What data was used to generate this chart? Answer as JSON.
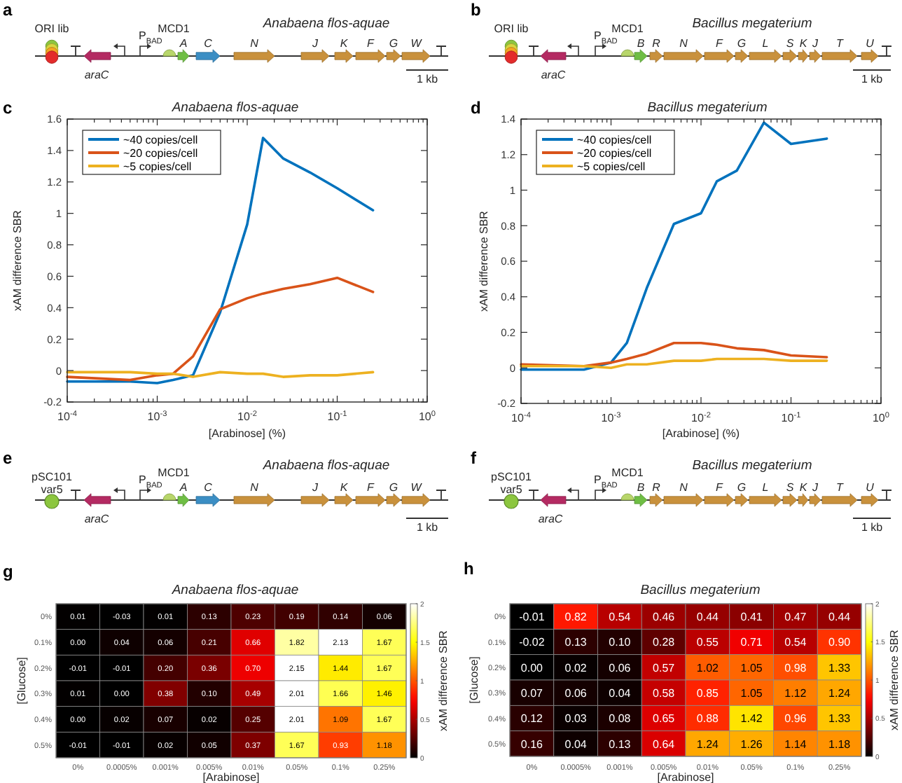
{
  "chart_data": [
    {
      "type": "other",
      "title": "Anabaena flos-aquae",
      "annotations": [
        "a",
        "ORI lib",
        "araC",
        "P$_{BAD}$",
        "MCD1",
        "A",
        "C",
        "N",
        "J",
        "K",
        "F",
        "G",
        "W",
        "1 kb"
      ]
    },
    {
      "type": "other",
      "title": "Bacillus megaterium",
      "annotations": [
        "b",
        "ORI lib",
        "araC",
        "P$_{BAD}$",
        "MCD1",
        "B",
        "R",
        "N",
        "F",
        "G",
        "L",
        "S",
        "K",
        "J",
        "T",
        "U",
        "1 kb"
      ]
    },
    {
      "type": "line",
      "title": "Anabaena flos-aquae",
      "xlabel": "[Arabinose] (%)",
      "ylabel": "xAM difference SBR",
      "annotations": [
        "c"
      ],
      "log": "x",
      "legend": "top left",
      "x": [
        0.0001,
        0.0005,
        0.001,
        0.0015,
        0.0025,
        0.005,
        0.01,
        0.015,
        0.025,
        0.05,
        0.1,
        0.25
      ],
      "series": [
        {
          "name": "~40 copies/cell",
          "color": "#0072bd",
          "values": [
            -0.07,
            -0.07,
            -0.08,
            -0.06,
            -0.03,
            0.37,
            0.93,
            1.48,
            1.35,
            1.26,
            1.16,
            1.02
          ]
        },
        {
          "name": "~20 copies/cell",
          "color": "#d95319",
          "values": [
            -0.04,
            -0.06,
            -0.03,
            -0.02,
            0.09,
            0.39,
            0.46,
            0.49,
            0.52,
            0.55,
            0.59,
            0.5
          ]
        },
        {
          "name": "~5 copies/cell",
          "color": "#edb120",
          "values": [
            -0.01,
            -0.01,
            -0.02,
            -0.02,
            -0.04,
            -0.01,
            -0.02,
            -0.02,
            -0.04,
            -0.03,
            -0.03,
            -0.01
          ]
        }
      ],
      "xlim": [
        0.0001,
        1
      ],
      "ylim": [
        -0.2,
        1.6
      ],
      "xticks": [
        {
          "value": 0.0001,
          "label": "10$^{-4}$"
        },
        {
          "value": 0.0002,
          "label": null
        },
        {
          "value": 0.0003,
          "label": null
        },
        {
          "value": 0.0004,
          "label": null
        },
        {
          "value": 0.0005,
          "label": null
        },
        {
          "value": 0.0006,
          "label": null
        },
        {
          "value": 0.0007,
          "label": null
        },
        {
          "value": 0.0008,
          "label": null
        },
        {
          "value": 0.0009,
          "label": null
        },
        {
          "value": 0.001,
          "label": "10$^{-3}$"
        },
        {
          "value": 0.002,
          "label": null
        },
        {
          "value": 0.003,
          "label": null
        },
        {
          "value": 0.004,
          "label": null
        },
        {
          "value": 0.005,
          "label": null
        },
        {
          "value": 0.006,
          "label": null
        },
        {
          "value": 0.007,
          "label": null
        },
        {
          "value": 0.008,
          "label": null
        },
        {
          "value": 0.009,
          "label": null
        },
        {
          "value": 0.01,
          "label": "10$^{-2}$"
        },
        {
          "value": 0.02,
          "label": null
        },
        {
          "value": 0.03,
          "label": null
        },
        {
          "value": 0.04,
          "label": null
        },
        {
          "value": 0.05,
          "label": null
        },
        {
          "value": 0.06,
          "label": null
        },
        {
          "value": 0.07,
          "label": null
        },
        {
          "value": 0.08,
          "label": null
        },
        {
          "value": 0.09,
          "label": null
        },
        {
          "value": 0.1,
          "label": "10$^{-1}$"
        },
        {
          "value": 0.2,
          "label": null
        },
        {
          "value": 0.3,
          "label": null
        },
        {
          "value": 0.4,
          "label": null
        },
        {
          "value": 0.5,
          "label": null
        },
        {
          "value": 0.6,
          "label": null
        },
        {
          "value": 0.7,
          "label": null
        },
        {
          "value": 0.8,
          "label": null
        },
        {
          "value": 0.9,
          "label": null
        },
        {
          "value": 1,
          "label": "10$^{0}$"
        }
      ],
      "yticks": [
        -0.2,
        0,
        0.2,
        0.4,
        0.6,
        0.8,
        1,
        1.2,
        1.4,
        1.6
      ]
    },
    {
      "type": "line",
      "title": "Bacillus megaterium",
      "xlabel": "[Arabinose] (%)",
      "ylabel": "xAM difference SBR",
      "annotations": [
        "d"
      ],
      "log": "x",
      "legend": "top left",
      "x": [
        0.0001,
        0.0005,
        0.001,
        0.0015,
        0.0025,
        0.005,
        0.01,
        0.015,
        0.025,
        0.05,
        0.1,
        0.25
      ],
      "series": [
        {
          "name": "~40 copies/cell",
          "color": "#0072bd",
          "values": [
            -0.01,
            -0.01,
            0.03,
            0.14,
            0.45,
            0.81,
            0.87,
            1.05,
            1.11,
            1.38,
            1.26,
            1.29
          ]
        },
        {
          "name": "~20 copies/cell",
          "color": "#d95319",
          "values": [
            0.02,
            0.01,
            0.03,
            0.05,
            0.08,
            0.14,
            0.14,
            0.13,
            0.11,
            0.1,
            0.07,
            0.06
          ]
        },
        {
          "name": "~5 copies/cell",
          "color": "#edb120",
          "values": [
            0.01,
            0.01,
            0,
            0.02,
            0.02,
            0.04,
            0.04,
            0.05,
            0.05,
            0.05,
            0.04,
            0.04
          ]
        }
      ],
      "xlim": [
        0.0001,
        1
      ],
      "ylim": [
        -0.2,
        1.4
      ],
      "xticks": [
        {
          "value": 0.0001,
          "label": "10$^{-4}$"
        },
        {
          "value": 0.0002,
          "label": null
        },
        {
          "value": 0.0003,
          "label": null
        },
        {
          "value": 0.0004,
          "label": null
        },
        {
          "value": 0.0005,
          "label": null
        },
        {
          "value": 0.0006,
          "label": null
        },
        {
          "value": 0.0007,
          "label": null
        },
        {
          "value": 0.0008,
          "label": null
        },
        {
          "value": 0.0009,
          "label": null
        },
        {
          "value": 0.001,
          "label": "10$^{-3}$"
        },
        {
          "value": 0.002,
          "label": null
        },
        {
          "value": 0.003,
          "label": null
        },
        {
          "value": 0.004,
          "label": null
        },
        {
          "value": 0.005,
          "label": null
        },
        {
          "value": 0.006,
          "label": null
        },
        {
          "value": 0.007,
          "label": null
        },
        {
          "value": 0.008,
          "label": null
        },
        {
          "value": 0.009,
          "label": null
        },
        {
          "value": 0.01,
          "label": "10$^{-2}$"
        },
        {
          "value": 0.02,
          "label": null
        },
        {
          "value": 0.03,
          "label": null
        },
        {
          "value": 0.04,
          "label": null
        },
        {
          "value": 0.05,
          "label": null
        },
        {
          "value": 0.06,
          "label": null
        },
        {
          "value": 0.07,
          "label": null
        },
        {
          "value": 0.08,
          "label": null
        },
        {
          "value": 0.09,
          "label": null
        },
        {
          "value": 0.1,
          "label": "10$^{-1}$"
        },
        {
          "value": 0.2,
          "label": null
        },
        {
          "value": 0.3,
          "label": null
        },
        {
          "value": 0.4,
          "label": null
        },
        {
          "value": 0.5,
          "label": null
        },
        {
          "value": 0.6,
          "label": null
        },
        {
          "value": 0.7,
          "label": null
        },
        {
          "value": 0.8,
          "label": null
        },
        {
          "value": 0.9,
          "label": null
        },
        {
          "value": 1,
          "label": "10$^{0}$"
        }
      ],
      "yticks": [
        -0.2,
        0,
        0.2,
        0.4,
        0.6,
        0.8,
        1,
        1.2,
        1.4
      ]
    },
    {
      "type": "other",
      "title": "Anabaena flos-aquae",
      "annotations": [
        "e",
        "pSC101",
        "var5",
        "araC",
        "P$_{BAD}$",
        "MCD1",
        "A",
        "C",
        "N",
        "J",
        "K",
        "F",
        "G",
        "W",
        "1 kb"
      ]
    },
    {
      "type": "other",
      "title": "Bacillus megaterium",
      "annotations": [
        "f",
        "pSC101",
        "var5",
        "araC",
        "P$_{BAD}$",
        "MCD1",
        "B",
        "R",
        "N",
        "F",
        "G",
        "L",
        "S",
        "K",
        "J",
        "T",
        "U",
        "1 kb"
      ]
    },
    {
      "type": "heatmap",
      "title": "Anabaena flos-aquae",
      "xlabel": "[Arabinose]",
      "ylabel": "[Glucose]",
      "clabel": "xAM difference SBR",
      "annotations": [
        "g"
      ],
      "categories": [
        "0%",
        "0.0005%",
        "0.001%",
        "0.005%",
        "0.01%",
        "0.05%",
        "0.1%",
        "0.25%"
      ],
      "y_categories": [
        "0%",
        "0.1%",
        "0.2%",
        "0.3%",
        "0.4%",
        "0.5%"
      ],
      "cells": [
        [
          0.01,
          -0.03,
          0.01,
          0.13,
          0.23,
          0.19,
          0.14,
          0.06
        ],
        [
          0,
          0.04,
          0.06,
          0.21,
          0.66,
          1.82,
          2.13,
          1.67
        ],
        [
          -0.01,
          -0.01,
          0.2,
          0.36,
          0.7,
          2.15,
          1.44,
          1.67
        ],
        [
          0.01,
          0,
          0.38,
          0.1,
          0.49,
          2.01,
          1.66,
          1.46
        ],
        [
          0,
          0.02,
          0.07,
          0.02,
          0.25,
          2.01,
          1.09,
          1.67
        ],
        [
          -0.01,
          -0.01,
          0.02,
          0.05,
          0.37,
          1.67,
          0.93,
          1.18
        ]
      ],
      "cell_labels": [
        [
          "0.01",
          "-0.03",
          "0.01",
          "0.13",
          "0.23",
          "0.19",
          "0.14",
          "0.06"
        ],
        [
          "0.00",
          "0.04",
          "0.06",
          "0.21",
          "0.66",
          "1.82",
          "2.13",
          "1.67"
        ],
        [
          "-0.01",
          "-0.01",
          "0.20",
          "0.36",
          "0.70",
          "2.15",
          "1.44",
          "1.67"
        ],
        [
          "0.01",
          "0.00",
          "0.38",
          "0.10",
          "0.49",
          "2.01",
          "1.66",
          "1.46"
        ],
        [
          "0.00",
          "0.02",
          "0.07",
          "0.02",
          "0.25",
          "2.01",
          "1.09",
          "1.67"
        ],
        [
          "-0.01",
          "-0.01",
          "0.02",
          "0.05",
          "0.37",
          "1.67",
          "0.93",
          "1.18"
        ]
      ],
      "clim": [
        0,
        2
      ],
      "cticks": [
        0,
        0.5,
        1,
        1.5,
        2
      ]
    },
    {
      "type": "heatmap",
      "title": "Bacillus megaterium",
      "xlabel": "[Arabinose]",
      "ylabel": "[Glucose]",
      "clabel": "xAM difference SBR",
      "annotations": [
        "h"
      ],
      "categories": [
        "0%",
        "0.0005%",
        "0.001%",
        "0.005%",
        "0.01%",
        "0.05%",
        "0.1%",
        "0.25%"
      ],
      "y_categories": [
        "0%",
        "0.1%",
        "0.2%",
        "0.3%",
        "0.4%",
        "0.5%"
      ],
      "cells": [
        [
          -0.01,
          0.82,
          0.54,
          0.46,
          0.44,
          0.41,
          0.47,
          0.44
        ],
        [
          -0.02,
          0.13,
          0.1,
          0.28,
          0.55,
          0.71,
          0.54,
          0.9
        ],
        [
          0,
          0.02,
          0.06,
          0.57,
          1.02,
          1.05,
          0.98,
          1.33
        ],
        [
          0.07,
          0.06,
          0.04,
          0.58,
          0.85,
          1.05,
          1.12,
          1.24
        ],
        [
          0.12,
          0.03,
          0.08,
          0.65,
          0.88,
          1.42,
          0.96,
          1.33
        ],
        [
          0.16,
          0.04,
          0.13,
          0.64,
          1.24,
          1.26,
          1.14,
          1.18
        ]
      ],
      "cell_labels": [
        [
          "-0.01",
          "0.82",
          "0.54",
          "0.46",
          "0.44",
          "0.41",
          "0.47",
          "0.44"
        ],
        [
          "-0.02",
          "0.13",
          "0.10",
          "0.28",
          "0.55",
          "0.71",
          "0.54",
          "0.90"
        ],
        [
          "0.00",
          "0.02",
          "0.06",
          "0.57",
          "1.02",
          "1.05",
          "0.98",
          "1.33"
        ],
        [
          "0.07",
          "0.06",
          "0.04",
          "0.58",
          "0.85",
          "1.05",
          "1.12",
          "1.24"
        ],
        [
          "0.12",
          "0.03",
          "0.08",
          "0.65",
          "0.88",
          "1.42",
          "0.96",
          "1.33"
        ],
        [
          "0.16",
          "0.04",
          "0.13",
          "0.64",
          "1.24",
          "1.26",
          "1.14",
          "1.18"
        ]
      ],
      "clim": [
        0,
        2
      ],
      "cticks": [
        0,
        0.5,
        1,
        1.5,
        2
      ]
    }
  ]
}
